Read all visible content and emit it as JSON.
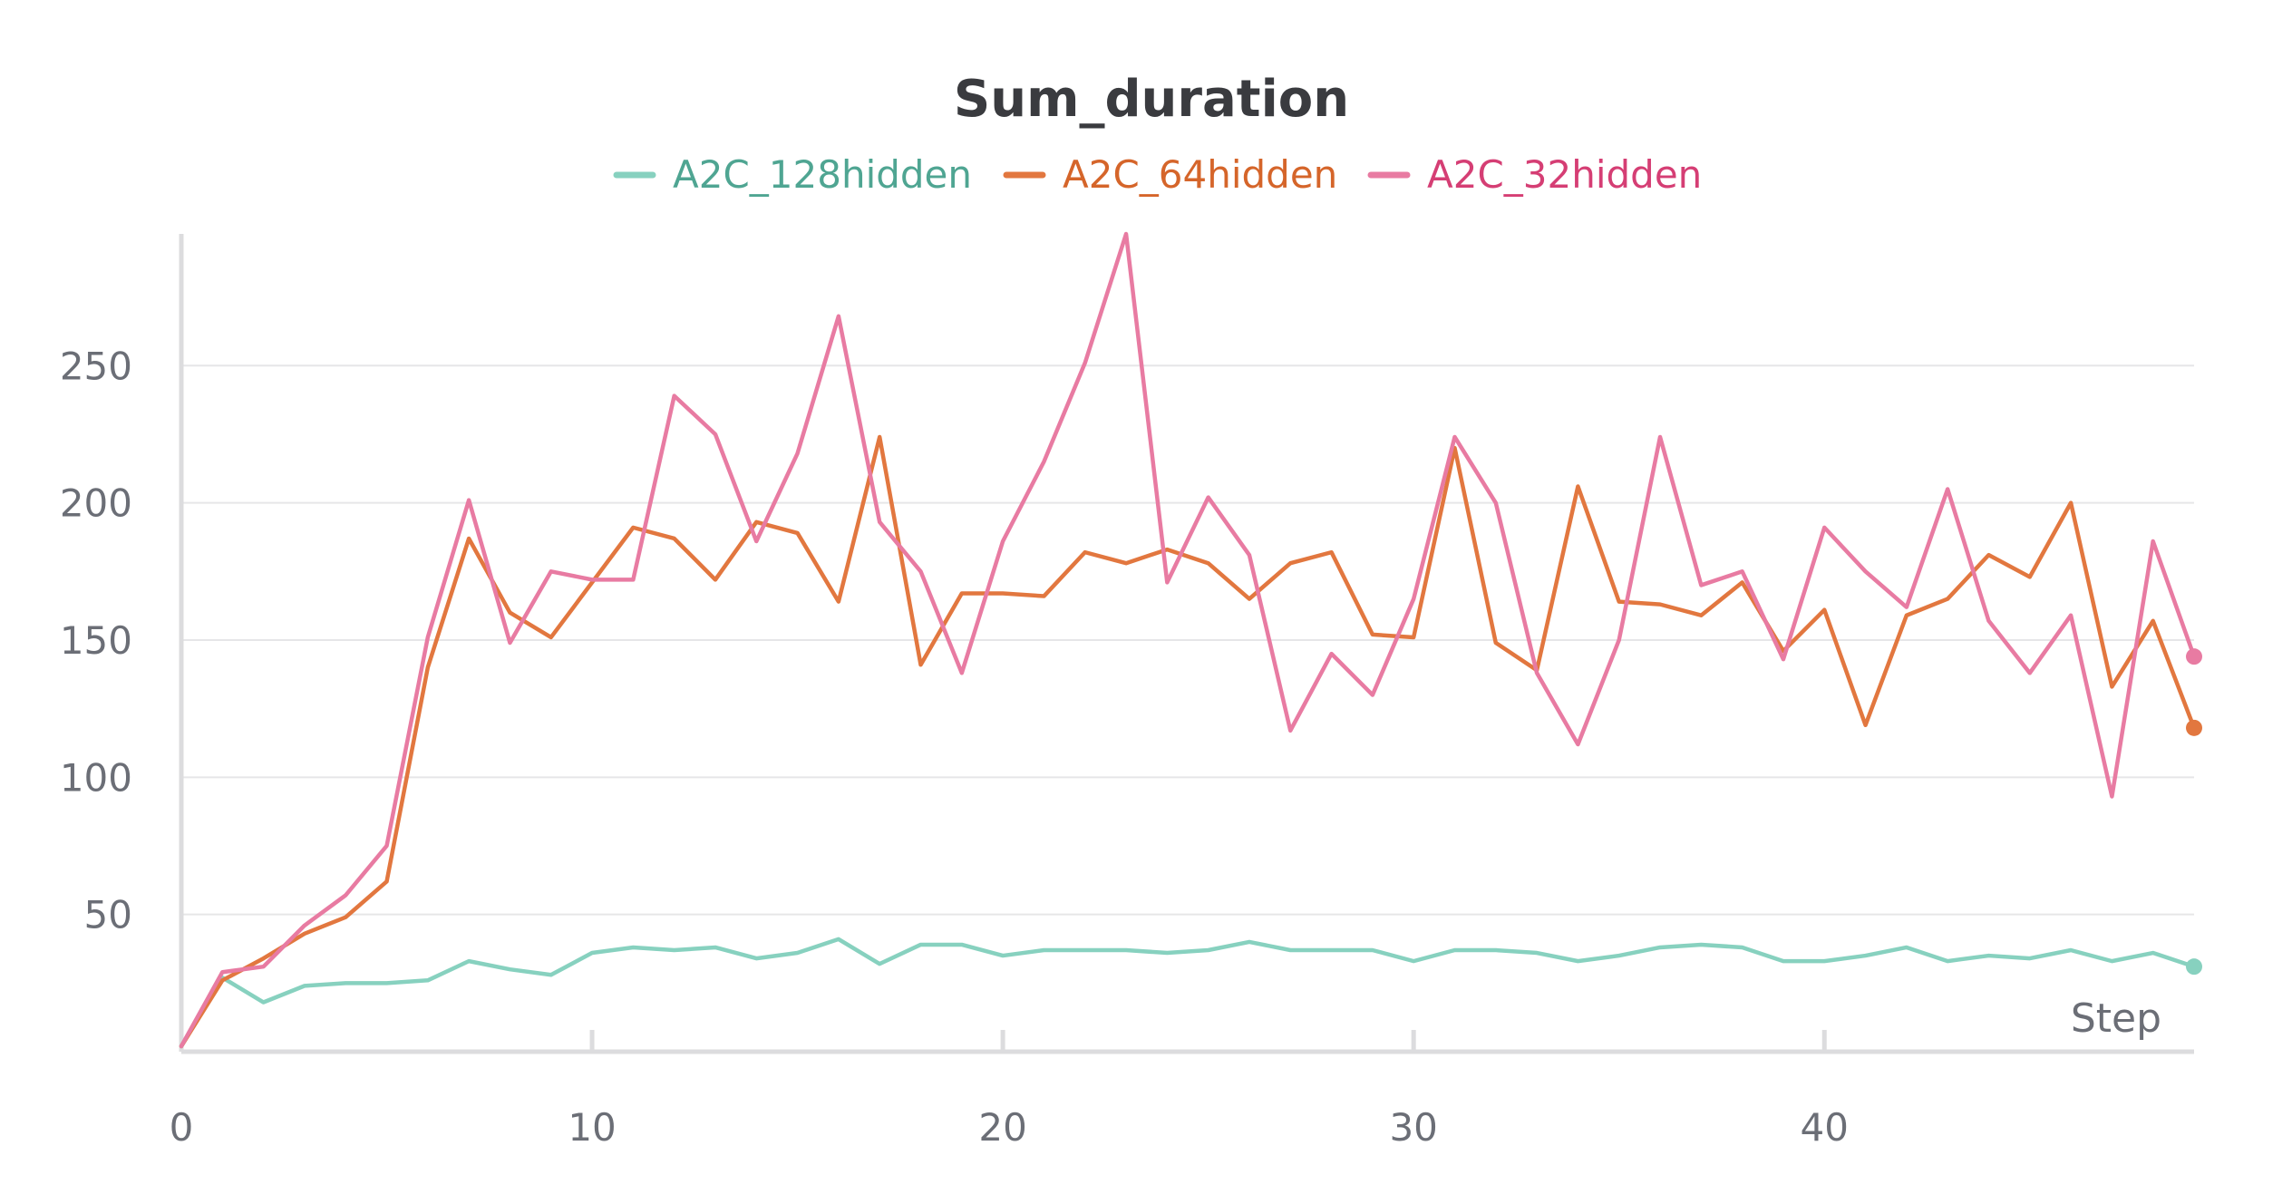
{
  "chart_data": {
    "type": "line",
    "title": "Sum_duration",
    "xlabel": "Step",
    "ylabel": "",
    "xlim": [
      0,
      49
    ],
    "ylim": [
      0,
      298
    ],
    "x_ticks": [
      0,
      10,
      20,
      30,
      40
    ],
    "y_ticks": [
      50,
      100,
      150,
      200,
      250
    ],
    "grid": true,
    "legend_position": "top-center",
    "x": [
      0,
      1,
      2,
      3,
      4,
      5,
      6,
      7,
      8,
      9,
      10,
      11,
      12,
      13,
      14,
      15,
      16,
      17,
      18,
      19,
      20,
      21,
      22,
      23,
      24,
      25,
      26,
      27,
      28,
      29,
      30,
      31,
      32,
      33,
      34,
      35,
      36,
      37,
      38,
      39,
      40,
      41,
      42,
      43,
      44,
      45,
      46,
      47,
      48,
      49
    ],
    "series": [
      {
        "name": "A2C_128hidden",
        "color": "#87d1bf",
        "legend_text_color": "#4fa592",
        "values": [
          2,
          27,
          18,
          24,
          25,
          25,
          26,
          33,
          30,
          28,
          36,
          38,
          37,
          38,
          34,
          36,
          41,
          32,
          39,
          39,
          35,
          37,
          37,
          37,
          36,
          37,
          40,
          37,
          37,
          37,
          33,
          37,
          37,
          36,
          33,
          35,
          38,
          39,
          38,
          33,
          33,
          35,
          38,
          33,
          35,
          34,
          37,
          33,
          36,
          31
        ]
      },
      {
        "name": "A2C_64hidden",
        "color": "#e2773f",
        "legend_text_color": "#d5652a",
        "values": [
          2,
          26,
          34,
          43,
          49,
          62,
          140,
          187,
          160,
          151,
          171,
          191,
          187,
          172,
          193,
          189,
          164,
          224,
          141,
          167,
          167,
          166,
          182,
          178,
          183,
          178,
          165,
          178,
          182,
          152,
          151,
          220,
          149,
          139,
          206,
          164,
          163,
          159,
          171,
          146,
          161,
          119,
          159,
          165,
          181,
          173,
          200,
          133,
          157,
          118
        ]
      },
      {
        "name": "A2C_32hidden",
        "color": "#e87ba2",
        "legend_text_color": "#d53e74",
        "values": [
          2,
          29,
          31,
          46,
          57,
          75,
          151,
          201,
          149,
          175,
          172,
          172,
          239,
          225,
          186,
          218,
          268,
          193,
          175,
          138,
          186,
          215,
          251,
          298,
          171,
          202,
          181,
          117,
          145,
          130,
          165,
          224,
          200,
          138,
          112,
          150,
          224,
          170,
          175,
          143,
          191,
          175,
          162,
          205,
          157,
          138,
          159,
          93,
          186,
          144
        ]
      }
    ]
  }
}
